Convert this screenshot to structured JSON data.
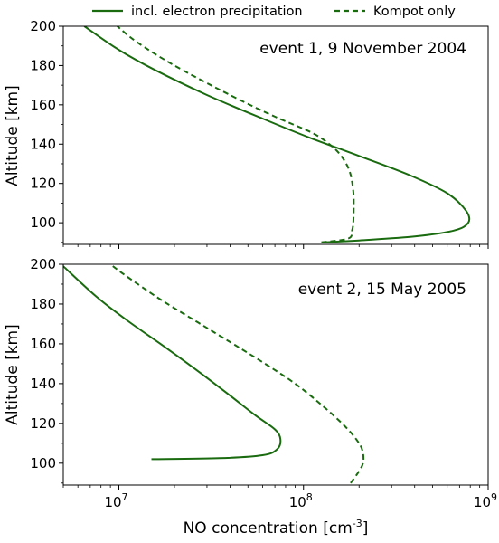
{
  "colors": {
    "curve": "#1a6b10",
    "axis": "#000000",
    "background": "#ffffff"
  },
  "legend": {
    "entries": [
      {
        "label": "incl. electron precipitation",
        "style": "solid"
      },
      {
        "label": "Kompot only",
        "style": "dashed"
      }
    ]
  },
  "chart_data": [
    {
      "type": "line",
      "annotation": "event 1, 9 November 2004",
      "ylabel": "Altitude [km]",
      "xlabel": "",
      "xscale": "log",
      "xlim": [
        5000000,
        1000000000
      ],
      "ylim": [
        89,
        200
      ],
      "yticks": [
        100,
        120,
        140,
        160,
        180,
        200
      ],
      "ytick_labels": [
        "100",
        "120",
        "140",
        "160",
        "180",
        "200"
      ],
      "series": [
        {
          "name": "incl. electron precipitation",
          "style": "solid",
          "x": [
            130000000,
            200000000,
            400000000,
            650000000,
            780000000,
            760000000,
            600000000,
            380000000,
            200000000,
            110000000,
            60000000,
            30000000,
            15500000,
            10000000,
            6500000
          ],
          "y": [
            90,
            91,
            93,
            96,
            100,
            106,
            115,
            124,
            134,
            143,
            153,
            165,
            178,
            188,
            200
          ]
        },
        {
          "name": "Kompot only",
          "style": "dashed",
          "x": [
            125000000,
            175000000,
            183000000,
            186000000,
            187000000,
            186000000,
            178000000,
            160000000,
            138000000,
            110000000,
            70000000,
            40000000,
            20000000,
            12500000,
            9800000
          ],
          "y": [
            90,
            92,
            96,
            100,
            108,
            116,
            126,
            134,
            140,
            146,
            154,
            165,
            180,
            192,
            200
          ]
        }
      ]
    },
    {
      "type": "line",
      "annotation": "event 2, 15 May 2005",
      "ylabel": "Altitude [km]",
      "xlabel": "NO concentration [cm",
      "xlabel_sup": "-3",
      "xlabel_end": "]",
      "xscale": "log",
      "xlim": [
        5000000,
        1000000000
      ],
      "ylim": [
        89,
        200
      ],
      "yticks": [
        100,
        120,
        140,
        160,
        180,
        200
      ],
      "ytick_labels": [
        "100",
        "120",
        "140",
        "160",
        "180",
        "200"
      ],
      "xticks": [
        10000000,
        100000000,
        1000000000
      ],
      "xtick_labels": [
        {
          "base": "10",
          "exp": "7"
        },
        {
          "base": "10",
          "exp": "8"
        },
        {
          "base": "10",
          "exp": "9"
        }
      ],
      "series": [
        {
          "name": "incl. electron precipitation",
          "style": "solid",
          "x": [
            15000000,
            35000000,
            60000000,
            72000000,
            75000000,
            70000000,
            55000000,
            40000000,
            28000000,
            18000000,
            11000000,
            7500000,
            5000000
          ],
          "y": [
            102,
            102.5,
            104,
            107,
            112,
            117,
            124,
            134,
            145,
            158,
            172,
            184,
            199
          ]
        },
        {
          "name": "Kompot only",
          "style": "dashed",
          "x": [
            180000000,
            200000000,
            210000000,
            210000000,
            200000000,
            170000000,
            130000000,
            90000000,
            55000000,
            30000000,
            17000000,
            11000000,
            9000000
          ],
          "y": [
            90,
            96,
            100,
            105,
            110,
            118,
            128,
            140,
            153,
            168,
            182,
            194,
            200
          ]
        }
      ]
    }
  ]
}
